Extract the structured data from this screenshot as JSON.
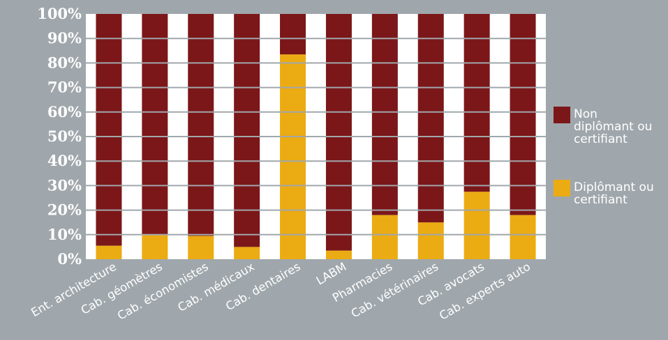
{
  "chart_data": {
    "type": "bar",
    "stacked": true,
    "percent": true,
    "categories": [
      "Ent. architecture",
      "Cab. géomètres",
      "Cab. économistes",
      "Cab. médicaux",
      "Cab. dentaires",
      "LABM",
      "Pharmacies",
      "Cab. vétérinaires",
      "Cab. avocats",
      "Cab. experts auto"
    ],
    "series": [
      {
        "name": "Diplômant ou certifiant",
        "color": "#ebab12",
        "values": [
          5.5,
          10,
          9.5,
          5,
          83.5,
          3.5,
          18,
          15,
          27.5,
          18
        ]
      },
      {
        "name": "Non diplômant ou certifiant",
        "color": "#7b1719",
        "values": [
          94.5,
          90,
          90.5,
          95,
          16.5,
          96.5,
          82,
          85,
          72.5,
          82
        ]
      }
    ],
    "ylim": [
      0,
      100
    ],
    "yticks": [
      "0%",
      "10%",
      "20%",
      "30%",
      "40%",
      "50%",
      "60%",
      "70%",
      "80%",
      "90%",
      "100%"
    ],
    "legend": {
      "position": "right",
      "entries": [
        {
          "series": "Non diplômant ou certifiant",
          "lines": [
            "Non",
            "diplômant ou",
            "certifiant"
          ]
        },
        {
          "series": "Diplômant ou certifiant",
          "lines": [
            "Diplômant ou",
            "certifiant"
          ]
        }
      ]
    },
    "grid": true,
    "colors": {
      "background": "#a0a7ac",
      "plot_bg": "#ffffff",
      "gridline": "#a0a7ac"
    }
  }
}
